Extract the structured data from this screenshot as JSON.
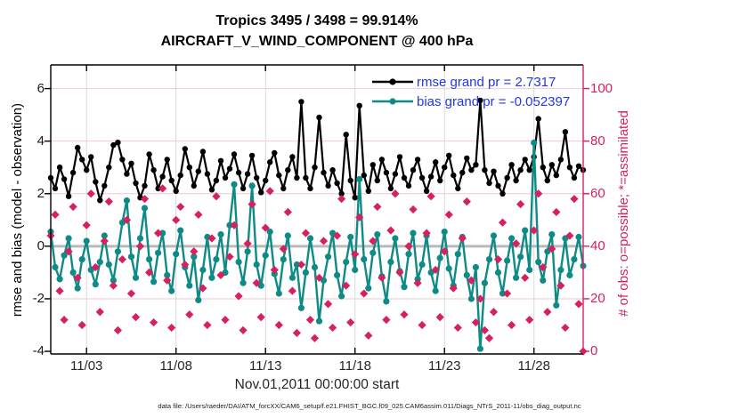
{
  "title": {
    "line1": "Tropics 3495 / 3498 = 99.914%",
    "line2": "AIRCRAFT_V_WIND_COMPONENT @ 400 hPa"
  },
  "legend": {
    "text_color": "#2038e8",
    "items": [
      {
        "label": "rmse grand pr = 2.7317",
        "color": "#000000"
      },
      {
        "label": "bias grand pr = -0.052397",
        "color": "#0e8b87"
      }
    ]
  },
  "axes": {
    "left_label": "rmse and bias (model - observation)",
    "right_label": "# of obs: o=possible; *=assimilated",
    "x_label": "Nov.01,2011 00:00:00 start",
    "x_ticks": [
      {
        "day": 2,
        "label": "11/03"
      },
      {
        "day": 7,
        "label": "11/08"
      },
      {
        "day": 12,
        "label": "11/13"
      },
      {
        "day": 17,
        "label": "11/18"
      },
      {
        "day": 22,
        "label": "11/23"
      },
      {
        "day": 27,
        "label": "11/28"
      }
    ],
    "left_ticks": [
      -4,
      -2,
      0,
      2,
      4,
      6
    ],
    "right_ticks": [
      0,
      20,
      40,
      60,
      80,
      100
    ]
  },
  "footer": "data file: /Users/raeder/DAI/ATM_forcXX/CAM6_setup/f.e21.FHIST_BGC.f09_025.CAM6assim.011/Diags_NTrS_2011-11/obs_diag_output.nc",
  "colors": {
    "rmse": "#000000",
    "bias": "#0e8b87",
    "obs": "#d62060",
    "grid_v": "#d9d9d9",
    "grid_h": "#f4c6d4",
    "zero_line": "#b9b9b9",
    "axis_left": "#000000",
    "axis_right": "#d62060"
  },
  "chart_data": {
    "type": "line",
    "title": "Tropics 3495 / 3498 = 99.914% | AIRCRAFT_V_WIND_COMPONENT @ 400 hPa",
    "x_start": "Nov 1, 2011 00:00:00",
    "x_step_days": 0.25,
    "xlim_days": [
      0,
      29.75
    ],
    "left_ylim": [
      -4.1,
      6.9
    ],
    "right_ylim": [
      0,
      110
    ],
    "grid": true,
    "legend_position": "top-right-inside",
    "series": [
      {
        "name": "rmse",
        "axis": "left",
        "marker": "circle",
        "color": "#000000",
        "values": [
          2.6,
          2.2,
          3.0,
          2.55,
          1.9,
          2.8,
          3.75,
          3.3,
          2.9,
          3.4,
          2.45,
          1.75,
          2.3,
          3.0,
          3.85,
          3.95,
          3.3,
          2.75,
          3.15,
          2.4,
          1.85,
          2.3,
          3.5,
          2.9,
          2.2,
          2.65,
          3.3,
          2.5,
          2.1,
          2.7,
          3.7,
          3.0,
          2.3,
          2.85,
          3.6,
          2.75,
          2.15,
          2.5,
          3.25,
          2.6,
          2.95,
          3.5,
          2.8,
          2.2,
          2.75,
          3.45,
          2.6,
          2.05,
          2.5,
          3.2,
          3.55,
          2.7,
          2.2,
          2.9,
          3.4,
          2.6,
          5.5,
          2.6,
          2.2,
          3.0,
          4.9,
          2.8,
          2.3,
          2.9,
          2.4,
          2.0,
          4.25,
          2.5,
          1.85,
          5.35,
          2.7,
          2.1,
          3.1,
          2.5,
          3.3,
          2.8,
          2.2,
          2.75,
          3.4,
          2.6,
          2.3,
          2.9,
          3.3,
          2.6,
          2.1,
          2.65,
          3.2,
          2.5,
          3.0,
          3.45,
          2.7,
          2.2,
          2.8,
          3.35,
          2.9,
          3.1,
          5.55,
          2.9,
          2.4,
          2.85,
          2.3,
          2.0,
          2.6,
          3.1,
          2.5,
          2.9,
          3.3,
          2.9,
          3.4,
          4.85,
          3.0,
          2.5,
          3.1,
          2.7,
          3.3,
          4.35,
          3.0,
          2.6,
          3.05,
          2.9
        ]
      },
      {
        "name": "bias",
        "axis": "left",
        "marker": "circle",
        "color": "#0e8b87",
        "values": [
          0.55,
          -0.8,
          -1.25,
          -0.35,
          0.3,
          -1.0,
          -1.6,
          -0.5,
          0.2,
          -0.9,
          -1.45,
          -0.6,
          0.4,
          -0.7,
          -1.3,
          -0.2,
          0.9,
          1.74,
          -0.4,
          -1.2,
          0.3,
          1.45,
          -0.5,
          -1.35,
          -0.25,
          0.5,
          -1.1,
          -1.7,
          -0.3,
          0.6,
          -0.8,
          -1.5,
          -0.4,
          -2.05,
          -0.9,
          0.35,
          -1.2,
          -0.5,
          0.45,
          -1.0,
          0.8,
          2.35,
          -0.6,
          -1.4,
          -0.2,
          2.3,
          -0.7,
          -1.5,
          -0.35,
          0.55,
          -1.05,
          -1.8,
          -0.5,
          0.4,
          -1.2,
          -0.7,
          -2.35,
          -1.0,
          0.3,
          -0.8,
          -2.85,
          -1.3,
          -0.4,
          0.5,
          -1.1,
          -1.9,
          -0.6,
          0.35,
          -0.9,
          2.55,
          -0.5,
          -1.6,
          -0.25,
          0.45,
          -1.15,
          -2.1,
          -0.6,
          0.3,
          -0.95,
          -1.55,
          -0.3,
          0.5,
          -1.25,
          -0.7,
          0.4,
          -1.0,
          -1.7,
          -0.45,
          0.55,
          -0.85,
          -1.5,
          -0.3,
          0.35,
          -1.1,
          -2.0,
          -0.8,
          -3.9,
          -1.4,
          -0.5,
          0.4,
          -1.0,
          -1.8,
          -0.55,
          0.3,
          -1.2,
          -0.4,
          0.6,
          -0.9,
          3.94,
          -0.6,
          -1.3,
          -0.2,
          0.45,
          -2.25,
          -0.9,
          0.3,
          -1.1,
          -0.5,
          0.35,
          -0.75
        ]
      },
      {
        "name": "obs_possible_and_assimilated",
        "axis": "right",
        "marker": "diamond",
        "color": "#d62060",
        "values": [
          44,
          52,
          23,
          12,
          38,
          55,
          28,
          10,
          48,
          60,
          32,
          15,
          42,
          57,
          25,
          8,
          35,
          50,
          22,
          13,
          40,
          58,
          30,
          11,
          45,
          62,
          27,
          9,
          50,
          55,
          33,
          14,
          38,
          52,
          24,
          10,
          43,
          59,
          29,
          12,
          36,
          48,
          21,
          8,
          41,
          56,
          26,
          13,
          47,
          61,
          31,
          10,
          39,
          53,
          23,
          7,
          33,
          45,
          12,
          5,
          28,
          42,
          18,
          9,
          44,
          58,
          25,
          11,
          37,
          51,
          22,
          6,
          42,
          55,
          28,
          12,
          46,
          60,
          30,
          14,
          40,
          54,
          26,
          10,
          45,
          59,
          31,
          13,
          38,
          52,
          24,
          9,
          43,
          57,
          27,
          11,
          20,
          8,
          5,
          15,
          35,
          49,
          22,
          10,
          41,
          56,
          28,
          12,
          46,
          60,
          32,
          15,
          39,
          53,
          25,
          9,
          44,
          58,
          18,
          0
        ]
      }
    ]
  }
}
